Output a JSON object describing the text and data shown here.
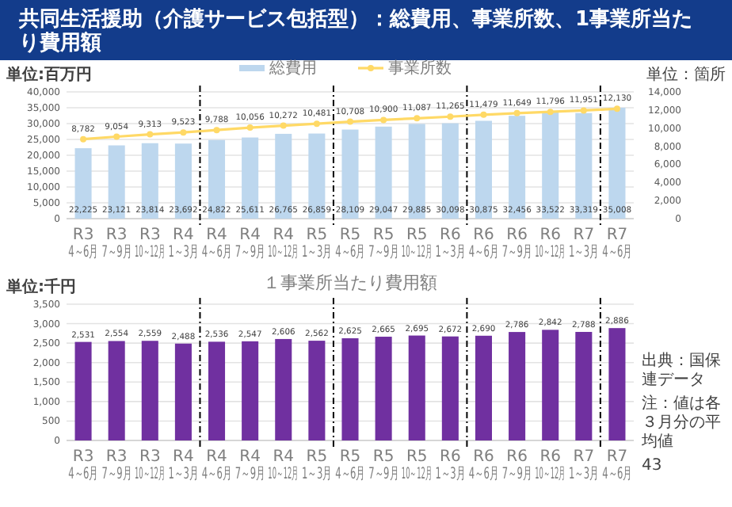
{
  "chart_data": [
    {
      "type": "bar",
      "title": "共同生活援助（介護サービス包括型）：総費用、事業所数、1事業所当たり費用額",
      "ylabel": "単位:百万円",
      "y2label": "単位：箇所",
      "categories": [
        "R3\n4～6月",
        "R3\n7～9月",
        "R3\n10～12月",
        "R4\n1～3月",
        "R4\n4～6月",
        "R4\n7～9月",
        "R4\n10～12月",
        "R5\n1～3月",
        "R5\n4～6月",
        "R5\n7～9月",
        "R5\n10～12月",
        "R6\n1～3月",
        "R6\n4～6月",
        "R6\n7～9月",
        "R6\n10～12月",
        "R7\n1～3月",
        "R7\n4～6月"
      ],
      "series": [
        {
          "name": "総費用",
          "color": "#bdd7ee",
          "values": [
            22225,
            23121,
            23814,
            23692,
            24822,
            25611,
            26765,
            26859,
            28109,
            29047,
            29885,
            30098,
            30875,
            32456,
            33522,
            33319,
            35008
          ],
          "value_labels": [
            "22,225",
            "23,121",
            "23,814",
            "23,692",
            "24,822",
            "25,611",
            "26,765",
            "26,859",
            "28,109",
            "29,047",
            "29,885",
            "30,098",
            "30,875",
            "32,456",
            "33,522",
            "33,319",
            "35,008"
          ]
        },
        {
          "name": "事業所数",
          "type": "line",
          "axis": "y2",
          "color": "#ffd966",
          "values": [
            8782,
            9054,
            9313,
            9523,
            9788,
            10056,
            10272,
            10481,
            10708,
            10900,
            11087,
            11265,
            11479,
            11649,
            11796,
            11951,
            12130
          ],
          "value_labels": [
            "8,782",
            "9,054",
            "9,313",
            "9,523",
            "9,788",
            "10,056",
            "10,272",
            "10,481",
            "10,708",
            "10,900",
            "11,087",
            "11,265",
            "11,479",
            "11,649",
            "11,796",
            "11,951",
            "12,130"
          ]
        }
      ],
      "marker": "circle",
      "ylim": [
        0,
        40000
      ],
      "yticks": [
        {
          "value": 0,
          "label": "0"
        },
        {
          "value": 5000,
          "label": "5,000"
        },
        {
          "value": 10000,
          "label": "10,000"
        },
        {
          "value": 15000,
          "label": "15,000"
        },
        {
          "value": 20000,
          "label": "20,000"
        },
        {
          "value": 25000,
          "label": "25,000"
        },
        {
          "value": 30000,
          "label": "30,000"
        },
        {
          "value": 35000,
          "label": "35,000"
        },
        {
          "value": 40000,
          "label": "40,000"
        }
      ],
      "y2lim": [
        0,
        14000
      ],
      "y2ticks": [
        {
          "value": 0,
          "label": "0"
        },
        {
          "value": 2000,
          "label": "2,000"
        },
        {
          "value": 4000,
          "label": "4,000"
        },
        {
          "value": 6000,
          "label": "6,000"
        },
        {
          "value": 8000,
          "label": "8,000"
        },
        {
          "value": 10000,
          "label": "10,000"
        },
        {
          "value": 12000,
          "label": "12,000"
        },
        {
          "value": 14000,
          "label": "14,000"
        }
      ],
      "grid": "y",
      "legend": "top"
    },
    {
      "type": "bar",
      "title": "１事業所当たり費用額",
      "ylabel": "単位:千円",
      "categories": [
        "R3\n4～6月",
        "R3\n7～9月",
        "R3\n10～12月",
        "R4\n1～3月",
        "R4\n4～6月",
        "R4\n7～9月",
        "R4\n10～12月",
        "R5\n1～3月",
        "R5\n4～6月",
        "R5\n7～9月",
        "R5\n10～12月",
        "R6\n1～3月",
        "R6\n4～6月",
        "R6\n7～9月",
        "R6\n10～12月",
        "R7\n1～3月",
        "R7\n4～6月"
      ],
      "values": [
        2531,
        2554,
        2559,
        2488,
        2536,
        2547,
        2606,
        2562,
        2625,
        2665,
        2695,
        2672,
        2690,
        2786,
        2842,
        2788,
        2886
      ],
      "value_labels": [
        "2,531",
        "2,554",
        "2,559",
        "2,488",
        "2,536",
        "2,547",
        "2,606",
        "2,562",
        "2,625",
        "2,665",
        "2,695",
        "2,672",
        "2,690",
        "2,786",
        "2,842",
        "2,788",
        "2,886"
      ],
      "color": "#7030a0",
      "ylim": [
        0,
        3500
      ],
      "yticks": [
        {
          "value": 0,
          "label": "0"
        },
        500,
        {
          "value": 1000,
          "label": "1,000"
        },
        {
          "value": 1500,
          "label": "1,500"
        },
        {
          "value": 2000,
          "label": "2,000"
        },
        {
          "value": 2500,
          "label": "2,500"
        },
        {
          "value": 3000,
          "label": "3,000"
        },
        {
          "value": 3500,
          "label": "3,500"
        }
      ],
      "grid": "y",
      "annotations": [
        "出典：国保連データ",
        "注：値は各３月分の平均値",
        "43"
      ]
    }
  ]
}
